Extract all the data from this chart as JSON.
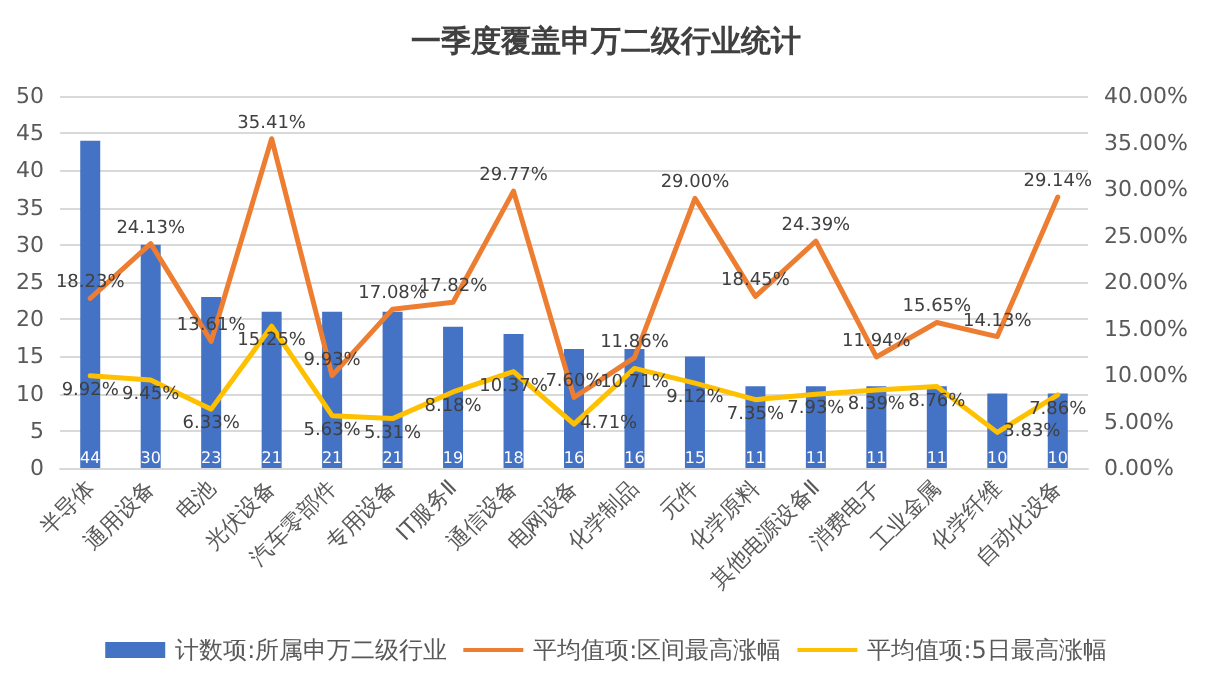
{
  "chart_data": {
    "type": "bar",
    "title": "一季度覆盖申万二级行业统计",
    "categories": [
      "半导体",
      "通用设备",
      "电池",
      "光伏设备",
      "汽车零部件",
      "专用设备",
      "IT服务Ⅱ",
      "通信设备",
      "电网设备",
      "化学制品",
      "元件",
      "化学原料",
      "其他电源设备Ⅱ",
      "消费电子",
      "工业金属",
      "化学纤维",
      "自动化设备"
    ],
    "series": [
      {
        "name": "计数项:所属申万二级行业",
        "color": "#4472c4",
        "values": [
          44,
          30,
          23,
          21,
          21,
          21,
          19,
          18,
          16,
          16,
          15,
          11,
          11,
          11,
          11,
          10,
          10
        ],
        "value_labels": [
          "44",
          "30",
          "23",
          "21",
          "21",
          "21",
          "19",
          "18",
          "16",
          "16",
          "15",
          "11",
          "11",
          "11",
          "11",
          "10",
          "10"
        ]
      },
      {
        "name": "平均值项:区间最高涨幅",
        "type": "line",
        "axis": "y2",
        "color": "#ed7d31",
        "values": [
          18.23,
          24.13,
          13.61,
          35.41,
          9.93,
          17.08,
          17.82,
          29.77,
          7.6,
          11.86,
          29.0,
          18.45,
          24.39,
          11.94,
          15.65,
          14.13,
          29.14
        ],
        "value_labels": [
          "18.23%",
          "24.13%",
          "13.61%",
          "35.41%",
          "9.93%",
          "17.08%",
          "17.82%",
          "29.77%",
          "7.60%",
          "11.86%",
          "29.00%",
          "18.45%",
          "24.39%",
          "11.94%",
          "15.65%",
          "14.13%",
          "29.14%"
        ]
      },
      {
        "name": "平均值项:5日最高涨幅",
        "type": "line",
        "axis": "y2",
        "color": "#ffc000",
        "values": [
          9.92,
          9.45,
          6.33,
          15.25,
          5.63,
          5.31,
          8.18,
          10.37,
          4.71,
          10.71,
          9.12,
          7.35,
          7.93,
          8.39,
          8.76,
          3.83,
          7.86
        ],
        "value_labels": [
          "9.92%",
          "9.45%",
          "6.33%",
          "15.25%",
          "5.63%",
          "5.31%",
          "8.18%",
          "10.37%",
          "4.71%",
          "10.71%",
          "9.12%",
          "7.35%",
          "7.93%",
          "8.39%",
          "8.76%",
          "3.83%",
          "7.86%"
        ]
      }
    ],
    "ylim": [
      0,
      50
    ],
    "yticks": [
      0,
      5,
      10,
      15,
      20,
      25,
      30,
      35,
      40,
      45,
      50
    ],
    "y2lim": [
      0,
      40
    ],
    "y2ticks": [
      {
        "value": 0,
        "label": "0.00%"
      },
      {
        "value": 5,
        "label": "5.00%"
      },
      {
        "value": 10,
        "label": "10.00%"
      },
      {
        "value": 15,
        "label": "15.00%"
      },
      {
        "value": 20,
        "label": "20.00%"
      },
      {
        "value": 25,
        "label": "25.00%"
      },
      {
        "value": 30,
        "label": "30.00%"
      },
      {
        "value": 35,
        "label": "35.00%"
      },
      {
        "value": 40,
        "label": "40.00%"
      }
    ],
    "grid": "y",
    "legend": "bottom",
    "marker": "none",
    "line_style": "solid"
  }
}
